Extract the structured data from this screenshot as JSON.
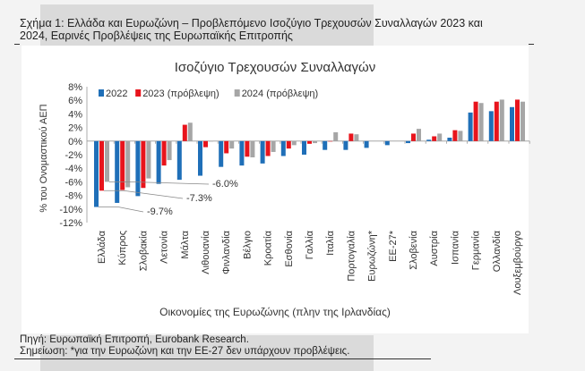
{
  "caption": {
    "line1": "Σχήμα 1: Ελλάδα και Ευρωζώνη – Προβλεπόμενο Ισοζύγιο Τρεχουσών Συναλλαγών 2023 και",
    "line2": "2024, Εαρινές Προβλέψεις της Ευρωπαϊκής Επιτροπής"
  },
  "footer": {
    "source": "Πηγή: Ευρωπαϊκή Επιτροπή, Eurobank Research.",
    "note": "Σημείωση: *για την Ευρωζώνη και την ΕΕ-27 δεν υπάρχουν προβλέψεις."
  },
  "chart_data": {
    "type": "bar",
    "title": "Ισοζύγιο Τρεχουσών Συναλλαγών",
    "xlabel": "Οικονομίες της Ευρωζώνης (πλην της Ιρλανδίας)",
    "ylabel": "% του Ονομαστικού ΑΕΠ",
    "ylim": [
      -12,
      8
    ],
    "yticks": [
      "8%",
      "6%",
      "4%",
      "2%",
      "0%",
      "-2%",
      "-4%",
      "-6%",
      "-8%",
      "-10%",
      "-12%"
    ],
    "legend_position": "top",
    "categories": [
      "Ελλάδα",
      "Κύπρος",
      "Σλοβακία",
      "Λετονία",
      "Μάλτα",
      "Λιθουανία",
      "Φινλανδία",
      "Βέλγιο",
      "Κροατία",
      "Εσθονία",
      "Γαλλία",
      "Ιταλία",
      "Πορτογαλία",
      "Ευρωζώνη*",
      "ΕΕ-27*",
      "Σλοβενία",
      "Αυστρία",
      "Ισπανία",
      "Γερμανία",
      "Ολλανδία",
      "Λουξεμβούργο"
    ],
    "series": [
      {
        "name": "2022",
        "color": "#1f6fb8",
        "values": [
          -9.7,
          -9.1,
          -8.1,
          -6.3,
          -5.7,
          -5.1,
          -3.8,
          -3.6,
          -3.3,
          -2.2,
          -2.0,
          -1.3,
          -1.3,
          -1.0,
          -0.6,
          -0.3,
          0.2,
          0.5,
          4.2,
          4.4,
          5.0
        ]
      },
      {
        "name": "2023 (πρόβλεψη)",
        "color": "#e8141c",
        "values": [
          -7.3,
          -7.2,
          -6.9,
          -3.6,
          2.4,
          -0.9,
          -1.8,
          -2.3,
          -2.2,
          -1.1,
          -0.4,
          0.0,
          1.1,
          null,
          null,
          1.1,
          0.7,
          1.6,
          5.8,
          5.8,
          6.1
        ]
      },
      {
        "name": "2024 (πρόβλεψη)",
        "color": "#a6a6a6",
        "values": [
          -6.0,
          -6.8,
          -5.5,
          -2.8,
          2.7,
          0.0,
          -1.1,
          -2.4,
          -1.6,
          -0.6,
          -0.3,
          1.3,
          1.0,
          null,
          null,
          1.8,
          1.1,
          1.5,
          5.6,
          6.1,
          5.8
        ]
      }
    ],
    "annotations": [
      "-6.0%",
      "-7.3%",
      "-9.7%"
    ]
  }
}
